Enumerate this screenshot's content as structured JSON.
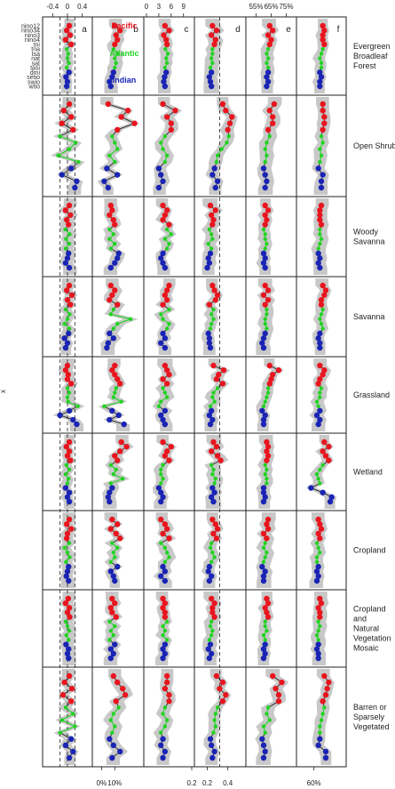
{
  "chart_data": {
    "type": "line",
    "y_axis_label": "x",
    "indices": [
      "nino12",
      "nino34",
      "nino3",
      "nino4",
      "tni",
      "tna",
      "tsa",
      "nat",
      "sat",
      "tasi",
      "dmi",
      "setio",
      "swio",
      "wtio"
    ],
    "index_colors": {
      "Pacific": "#e8151e",
      "Atlantic": "#22d322",
      "Indian": "#1a24b4"
    },
    "index_groups": [
      "Pacific",
      "Pacific",
      "Pacific",
      "Pacific",
      "Pacific",
      "Atlantic",
      "Atlantic",
      "Atlantic",
      "Atlantic",
      "Atlantic",
      "Indian",
      "Indian",
      "Indian",
      "Indian"
    ],
    "legend": [
      {
        "label": "Pacific",
        "color": "#e8151e"
      },
      {
        "label": "Atlantic",
        "color": "#22d322"
      },
      {
        "label": "Indian",
        "color": "#1a24b4"
      }
    ],
    "panels": [
      {
        "letter": "a",
        "top_ticks": [
          "-0.4",
          "0",
          "0.4"
        ],
        "bottom_ticks": [],
        "xlim": [
          -0.6,
          0.6
        ],
        "top_tick_values": [
          -0.4,
          0,
          0.4
        ],
        "bottom_tick_values": [],
        "reference_lines": [
          -0.2,
          0,
          0.2
        ]
      },
      {
        "letter": "b",
        "top_ticks": [],
        "bottom_ticks": [
          "0%",
          "10%"
        ],
        "xlim": [
          -0.05,
          0.3
        ],
        "top_tick_values": [],
        "bottom_tick_values": [
          0,
          0.1
        ],
        "reference_lines": []
      },
      {
        "letter": "c",
        "top_ticks": [
          "0",
          "3",
          "6",
          "9"
        ],
        "bottom_ticks": [
          "0.2"
        ],
        "xlim": [
          0,
          11
        ],
        "top_tick_values": [
          0,
          3,
          6,
          9
        ],
        "bottom_tick_values": [
          11
        ],
        "reference_lines": []
      },
      {
        "letter": "d",
        "top_ticks": [],
        "bottom_ticks": [
          "0.2",
          "0.4"
        ],
        "xlim": [
          0.1,
          0.55
        ],
        "top_tick_values": [],
        "bottom_tick_values": [
          0.2,
          0.4
        ],
        "reference_lines": [
          0.32
        ]
      },
      {
        "letter": "e",
        "top_ticks": [
          "55%",
          "65%",
          "75%"
        ],
        "bottom_ticks": [],
        "xlim": [
          0.5,
          0.8
        ],
        "top_tick_values": [
          0.55,
          0.65,
          0.75
        ],
        "bottom_tick_values": [],
        "reference_lines": []
      },
      {
        "letter": "f",
        "top_ticks": [],
        "bottom_ticks": [
          "60%"
        ],
        "xlim": [
          0.5,
          0.8
        ],
        "top_tick_values": [],
        "bottom_tick_values": [
          0.6
        ],
        "reference_lines": []
      }
    ],
    "land_covers": [
      "Evergreen Broadleaf Forest",
      "Open Shrub",
      "Woody Savanna",
      "Savanna",
      "Grassland",
      "Wetland",
      "Cropland",
      "Cropland and Natural Vegetation Mosaic",
      "Barren or Sparsely Vegetated"
    ],
    "series": [
      {
        "land_cover": "Evergreen Broadleaf Forest",
        "panels": [
          [
            0.05,
            -0.02,
            0.07,
            -0.05,
            0.1,
            -0.02,
            0.02,
            0.0,
            0.04,
            -0.02,
            0.04,
            -0.04,
            0.0,
            -0.02
          ],
          [
            0.1,
            0.14,
            0.11,
            0.12,
            0.1,
            0.09,
            0.12,
            0.1,
            0.11,
            0.1,
            0.09,
            0.08,
            0.06,
            0.07
          ],
          [
            4.5,
            5.5,
            4.2,
            4.8,
            5.0,
            4.6,
            5.2,
            4.8,
            5.0,
            4.5,
            4.8,
            4.4,
            4.2,
            4.5
          ],
          [
            0.25,
            0.29,
            0.24,
            0.28,
            0.27,
            0.25,
            0.25,
            0.24,
            0.25,
            0.23,
            0.24,
            0.22,
            0.23,
            0.24
          ],
          [
            0.64,
            0.66,
            0.63,
            0.65,
            0.64,
            0.63,
            0.62,
            0.63,
            0.62,
            0.63,
            0.63,
            0.62,
            0.63,
            0.62
          ],
          [
            0.66,
            0.67,
            0.66,
            0.66,
            0.67,
            0.66,
            0.65,
            0.64,
            0.65,
            0.65,
            0.64,
            0.65,
            0.64,
            0.64
          ]
        ]
      },
      {
        "land_cover": "Open Shrub",
        "panels": [
          [
            0.05,
            -0.1,
            0.1,
            -0.15,
            0.15,
            -0.2,
            0.22,
            0.05,
            -0.25,
            0.3,
            0.1,
            -0.15,
            0.25,
            0.2
          ],
          [
            0.05,
            0.2,
            0.15,
            0.25,
            0.12,
            0.08,
            0.1,
            0.12,
            0.06,
            0.1,
            0.04,
            0.12,
            0.02,
            0.05
          ],
          [
            4.0,
            7.0,
            5.0,
            6.0,
            6.0,
            4.5,
            3.5,
            4.0,
            5.0,
            4.5,
            3.0,
            3.5,
            4.0,
            3.0
          ],
          [
            0.35,
            0.38,
            0.44,
            0.42,
            0.4,
            0.41,
            0.39,
            0.34,
            0.3,
            0.29,
            0.27,
            0.25,
            0.3,
            0.28
          ],
          [
            0.67,
            0.64,
            0.66,
            0.66,
            0.63,
            0.64,
            0.62,
            0.61,
            0.62,
            0.61,
            0.6,
            0.61,
            0.62,
            0.61
          ],
          [
            0.66,
            0.66,
            0.67,
            0.67,
            0.66,
            0.65,
            0.66,
            0.64,
            0.65,
            0.64,
            0.63,
            0.66,
            0.65,
            0.65
          ]
        ]
      },
      {
        "land_cover": "Woody Savanna",
        "panels": [
          [
            0.05,
            -0.05,
            0.08,
            -0.02,
            0.03,
            -0.06,
            0.06,
            -0.04,
            0.05,
            -0.05,
            0.03,
            0.0,
            -0.05,
            0.05
          ],
          [
            0.07,
            0.08,
            0.06,
            0.09,
            0.1,
            0.06,
            0.09,
            0.06,
            0.1,
            0.07,
            0.13,
            0.12,
            0.1,
            0.07
          ],
          [
            4.0,
            5.0,
            4.5,
            4.0,
            5.5,
            5.0,
            6.0,
            4.5,
            5.5,
            5.0,
            4.0,
            3.5,
            4.0,
            4.5
          ],
          [
            0.23,
            0.28,
            0.24,
            0.26,
            0.25,
            0.22,
            0.24,
            0.25,
            0.21,
            0.24,
            0.23,
            0.21,
            0.22,
            0.2
          ],
          [
            0.61,
            0.63,
            0.61,
            0.62,
            0.61,
            0.6,
            0.61,
            0.61,
            0.62,
            0.61,
            0.6,
            0.61,
            0.6,
            0.61
          ],
          [
            0.65,
            0.64,
            0.64,
            0.64,
            0.65,
            0.64,
            0.64,
            0.65,
            0.64,
            0.63,
            0.63,
            0.64,
            0.63,
            0.64
          ]
        ]
      },
      {
        "land_cover": "Savanna",
        "panels": [
          [
            0.05,
            -0.02,
            0.12,
            0.0,
            0.08,
            -0.05,
            0.06,
            0.0,
            -0.08,
            0.05,
            0.03,
            -0.08,
            0.0,
            -0.05
          ],
          [
            0.07,
            0.1,
            0.08,
            0.06,
            0.12,
            0.09,
            0.07,
            0.22,
            0.12,
            0.09,
            0.06,
            0.09,
            0.05,
            0.04
          ],
          [
            5.5,
            5.0,
            4.5,
            5.0,
            4.0,
            5.5,
            3.5,
            4.0,
            5.5,
            5.0,
            4.0,
            4.5,
            3.5,
            4.5
          ],
          [
            0.25,
            0.27,
            0.3,
            0.28,
            0.22,
            0.26,
            0.24,
            0.26,
            0.24,
            0.23,
            0.21,
            0.22,
            0.22,
            0.23
          ],
          [
            0.61,
            0.63,
            0.6,
            0.63,
            0.61,
            0.62,
            0.62,
            0.61,
            0.61,
            0.62,
            0.61,
            0.6,
            0.59,
            0.6
          ],
          [
            0.66,
            0.68,
            0.67,
            0.65,
            0.65,
            0.66,
            0.65,
            0.64,
            0.65,
            0.66,
            0.64,
            0.63,
            0.64,
            0.64
          ]
        ]
      },
      {
        "land_cover": "Grassland",
        "panels": [
          [
            0.0,
            -0.05,
            0.02,
            0.0,
            0.1,
            0.0,
            0.05,
            0.0,
            0.02,
            0.28,
            0.05,
            -0.2,
            0.15,
            0.25
          ],
          [
            0.1,
            0.08,
            0.1,
            0.12,
            0.14,
            0.11,
            0.1,
            0.09,
            0.15,
            0.02,
            0.08,
            0.13,
            0.06,
            0.17
          ],
          [
            4.5,
            5.0,
            5.5,
            4.0,
            5.0,
            4.0,
            4.5,
            5.0,
            3.5,
            3.0,
            4.5,
            3.5,
            4.0,
            4.5
          ],
          [
            0.26,
            0.36,
            0.31,
            0.29,
            0.35,
            0.3,
            0.26,
            0.25,
            0.27,
            0.23,
            0.24,
            0.22,
            0.25,
            0.23
          ],
          [
            0.64,
            0.7,
            0.66,
            0.65,
            0.64,
            0.63,
            0.63,
            0.62,
            0.61,
            0.6,
            0.59,
            0.61,
            0.6,
            0.6
          ],
          [
            0.64,
            0.67,
            0.66,
            0.64,
            0.63,
            0.65,
            0.64,
            0.64,
            0.62,
            0.63,
            0.64,
            0.62,
            0.64,
            0.63
          ]
        ]
      },
      {
        "land_cover": "Wetland",
        "panels": [
          [
            0.05,
            -0.03,
            0.05,
            0.0,
            0.08,
            -0.03,
            0.05,
            -0.05,
            0.03,
            0.0,
            -0.05,
            0.05,
            0.0,
            0.05
          ],
          [
            0.15,
            0.19,
            0.14,
            0.1,
            0.12,
            0.07,
            0.11,
            0.09,
            0.16,
            0.07,
            0.08,
            0.06,
            0.05,
            0.06
          ],
          [
            4.0,
            6.0,
            5.0,
            4.5,
            5.5,
            4.0,
            3.5,
            3.5,
            4.0,
            3.5,
            3.0,
            3.5,
            4.0,
            3.5
          ],
          [
            0.26,
            0.29,
            0.24,
            0.3,
            0.33,
            0.24,
            0.26,
            0.25,
            0.28,
            0.27,
            0.25,
            0.27,
            0.24,
            0.26
          ],
          [
            0.62,
            0.63,
            0.62,
            0.63,
            0.62,
            0.61,
            0.62,
            0.61,
            0.62,
            0.62,
            0.6,
            0.6,
            0.61,
            0.6
          ],
          [
            0.67,
            0.7,
            0.66,
            0.68,
            0.7,
            0.66,
            0.64,
            0.62,
            0.63,
            0.64,
            0.58,
            0.66,
            0.72,
            0.71
          ]
        ]
      },
      {
        "land_cover": "Cropland",
        "panels": [
          [
            0.05,
            -0.02,
            0.1,
            0.0,
            -0.02,
            0.05,
            -0.08,
            0.0,
            0.06,
            -0.04,
            0.03,
            0.0,
            -0.03,
            0.03
          ],
          [
            0.08,
            0.12,
            0.07,
            0.11,
            0.14,
            0.08,
            0.12,
            0.09,
            0.1,
            0.07,
            0.12,
            0.07,
            0.09,
            0.1
          ],
          [
            3.5,
            4.5,
            5.0,
            4.0,
            5.5,
            3.5,
            4.5,
            5.0,
            5.5,
            4.5,
            4.0,
            4.5,
            3.5,
            4.5
          ],
          [
            0.25,
            0.28,
            0.3,
            0.26,
            0.29,
            0.24,
            0.23,
            0.25,
            0.27,
            0.24,
            0.22,
            0.21,
            0.24,
            0.22
          ],
          [
            0.63,
            0.62,
            0.63,
            0.6,
            0.62,
            0.61,
            0.6,
            0.62,
            0.61,
            0.6,
            0.59,
            0.61,
            0.6,
            0.6
          ],
          [
            0.63,
            0.64,
            0.65,
            0.63,
            0.64,
            0.62,
            0.63,
            0.64,
            0.62,
            0.62,
            0.63,
            0.62,
            0.63,
            0.62
          ]
        ]
      },
      {
        "land_cover": "Cropland and Natural Vegetation Mosaic",
        "panels": [
          [
            0.02,
            -0.05,
            0.05,
            0.0,
            0.06,
            -0.05,
            0.0,
            0.05,
            -0.03,
            0.03,
            -0.04,
            0.03,
            0.0,
            0.03
          ],
          [
            0.08,
            0.1,
            0.07,
            0.08,
            0.11,
            0.06,
            0.1,
            0.07,
            0.09,
            0.06,
            0.1,
            0.07,
            0.09,
            0.07
          ],
          [
            4.0,
            4.5,
            4.0,
            4.5,
            4.5,
            5.0,
            4.0,
            4.5,
            4.0,
            5.0,
            4.5,
            4.0,
            4.5,
            4.0
          ],
          [
            0.24,
            0.27,
            0.25,
            0.25,
            0.27,
            0.24,
            0.23,
            0.25,
            0.24,
            0.22,
            0.23,
            0.21,
            0.24,
            0.22
          ],
          [
            0.62,
            0.63,
            0.61,
            0.62,
            0.63,
            0.61,
            0.61,
            0.62,
            0.6,
            0.61,
            0.61,
            0.6,
            0.61,
            0.6
          ],
          [
            0.64,
            0.65,
            0.63,
            0.64,
            0.64,
            0.63,
            0.64,
            0.63,
            0.62,
            0.63,
            0.63,
            0.62,
            0.63,
            0.63
          ]
        ]
      },
      {
        "land_cover": "Barren or Sparsely Vegetated",
        "panels": [
          [
            0.05,
            -0.08,
            0.12,
            -0.12,
            0.1,
            -0.05,
            0.15,
            -0.15,
            0.2,
            -0.2,
            0.1,
            -0.05,
            0.15,
            0.05
          ],
          [
            0.09,
            0.12,
            0.16,
            0.18,
            0.11,
            0.13,
            0.09,
            0.07,
            0.1,
            0.08,
            0.06,
            0.09,
            0.14,
            0.08
          ],
          [
            5.0,
            5.0,
            4.5,
            5.5,
            5.5,
            4.5,
            4.0,
            5.0,
            4.5,
            3.5,
            4.0,
            3.5,
            4.5,
            4.0
          ],
          [
            0.29,
            0.35,
            0.32,
            0.38,
            0.35,
            0.3,
            0.28,
            0.27,
            0.28,
            0.26,
            0.23,
            0.24,
            0.27,
            0.25
          ],
          [
            0.66,
            0.72,
            0.68,
            0.7,
            0.7,
            0.63,
            0.62,
            0.64,
            0.6,
            0.61,
            0.59,
            0.6,
            0.61,
            0.6
          ],
          [
            0.67,
            0.7,
            0.69,
            0.68,
            0.66,
            0.67,
            0.66,
            0.65,
            0.64,
            0.64,
            0.64,
            0.63,
            0.68,
            0.68
          ]
        ]
      }
    ]
  }
}
